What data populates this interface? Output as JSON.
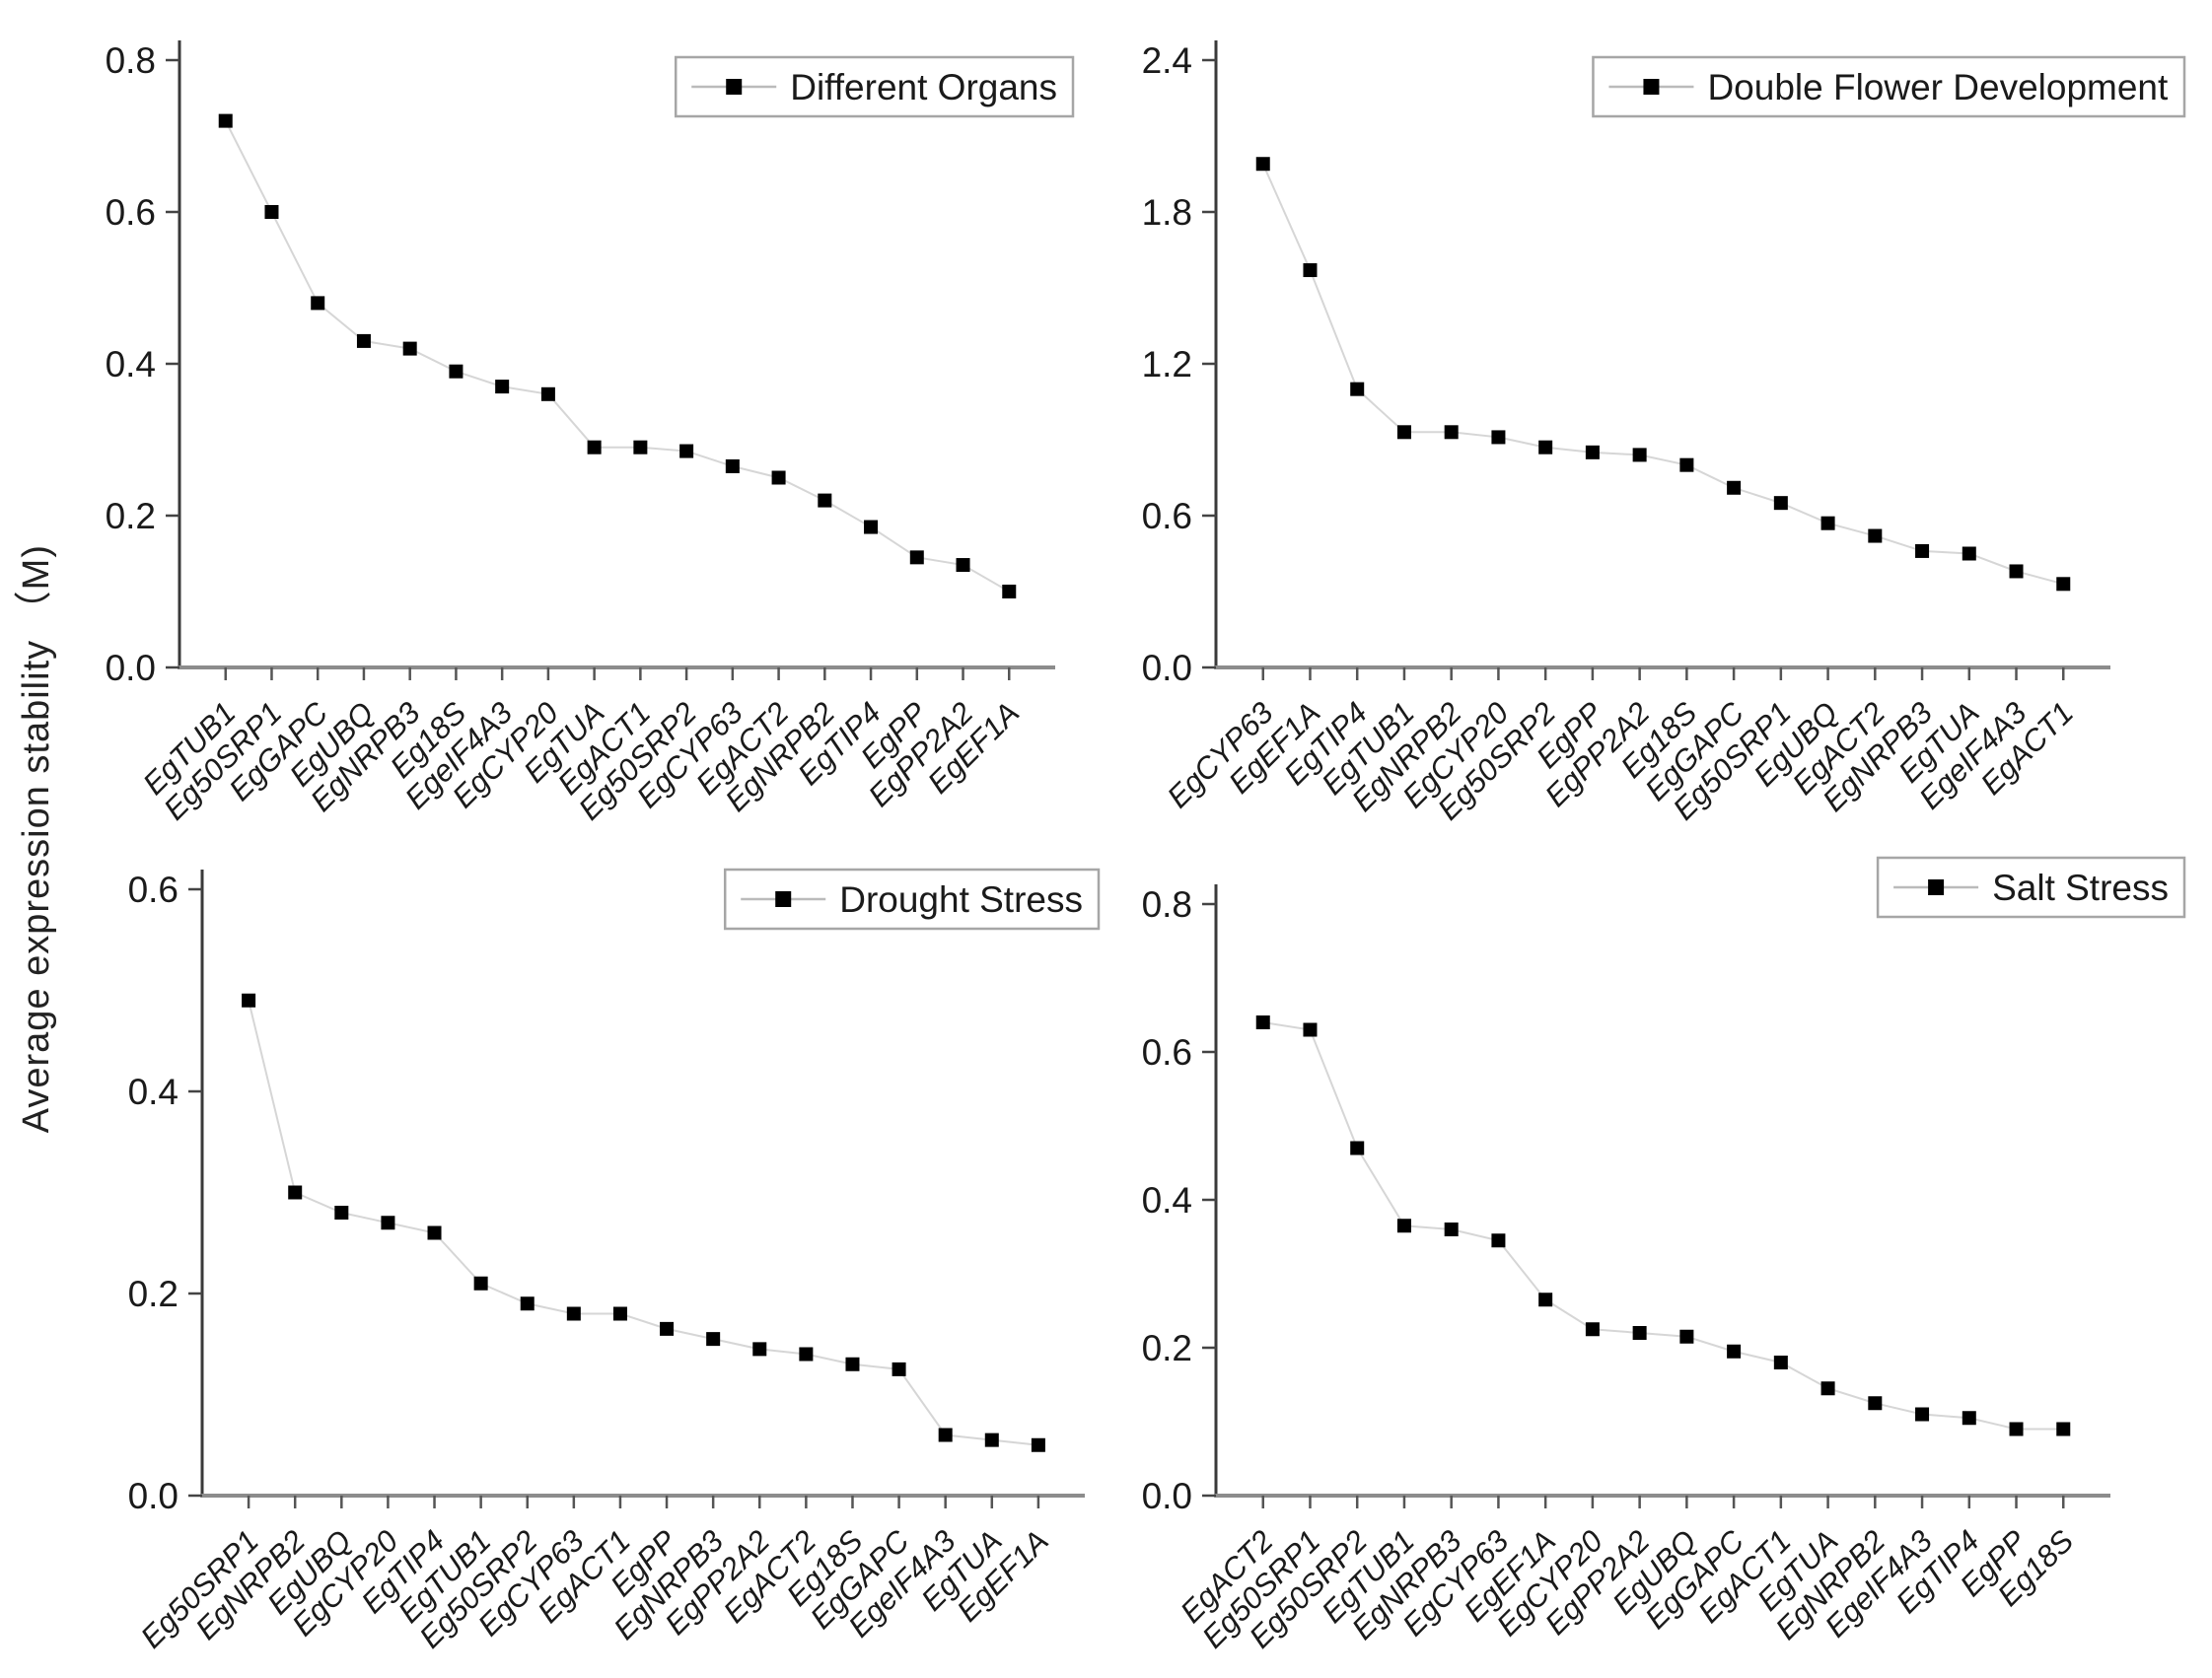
{
  "figure": {
    "y_axis_label": "Average expression stability （M)",
    "background_color": "#ffffff",
    "text_color": "#1a1a1a",
    "marker_color": "#000000",
    "line_color": "#d6d6d6",
    "legend_border_color": "#a6a6a6",
    "x_axis_color": "#8c8c8c",
    "y_axis_color": "#3a3a3a"
  },
  "chart_data": [
    {
      "type": "line",
      "legend": "Different Organs",
      "legend_position": "top-right",
      "marker": "filled-square",
      "grid": false,
      "ylim": [
        0,
        0.8
      ],
      "yticks": [
        0,
        0.2,
        0.4,
        0.6,
        0.8
      ],
      "ytick_labels": [
        "0.0",
        "0.2",
        "0.4",
        "0.6",
        "0.8"
      ],
      "categories": [
        "EgTUB1",
        "Eg50SRP1",
        "EgGAPC",
        "EgUBQ",
        "EgNRPB3",
        "Eg18S",
        "EgeIF4A3",
        "EgCYP20",
        "EgTUA",
        "EgACT1",
        "Eg50SRP2",
        "EgCYP63",
        "EgACT2",
        "EgNRPB2",
        "EgTIP4",
        "EgPP",
        "EgPP2A2",
        "EgEF1A"
      ],
      "values": [
        0.72,
        0.6,
        0.48,
        0.43,
        0.42,
        0.39,
        0.37,
        0.36,
        0.29,
        0.29,
        0.285,
        0.265,
        0.25,
        0.22,
        0.185,
        0.145,
        0.135,
        0.1
      ]
    },
    {
      "type": "line",
      "legend": "Double Flower Development",
      "legend_position": "top-right",
      "marker": "filled-square",
      "grid": false,
      "ylim": [
        0,
        2.4
      ],
      "yticks": [
        0,
        0.6,
        1.2,
        1.8,
        2.4
      ],
      "ytick_labels": [
        "0.0",
        "0.6",
        "1.2",
        "1.8",
        "2.4"
      ],
      "categories": [
        "EgCYP63",
        "EgEF1A",
        "EgTIP4",
        "EgTUB1",
        "EgNRPB2",
        "EgCYP20",
        "Eg50SRP2",
        "EgPP",
        "EgPP2A2",
        "Eg18S",
        "EgGAPC",
        "Eg50SRP1",
        "EgUBQ",
        "EgACT2",
        "EgNRPB3",
        "EgTUA",
        "EgeIF4A3",
        "EgACT1"
      ],
      "values": [
        1.99,
        1.57,
        1.1,
        0.93,
        0.93,
        0.91,
        0.87,
        0.85,
        0.84,
        0.8,
        0.71,
        0.65,
        0.57,
        0.52,
        0.46,
        0.45,
        0.38,
        0.33
      ]
    },
    {
      "type": "line",
      "legend": "Drought Stress",
      "legend_position": "top-right",
      "marker": "filled-square",
      "grid": false,
      "ylim": [
        0,
        0.6
      ],
      "yticks": [
        0,
        0.2,
        0.4,
        0.6
      ],
      "ytick_labels": [
        "0.0",
        "0.2",
        "0.4",
        "0.6"
      ],
      "categories": [
        "Eg50SRP1",
        "EgNRPB2",
        "EgUBQ",
        "EgCYP20",
        "EgTIP4",
        "EgTUB1",
        "Eg50SRP2",
        "EgCYP63",
        "EgACT1",
        "EgPP",
        "EgNRPB3",
        "EgPP2A2",
        "EgACT2",
        "Eg18S",
        "EgGAPC",
        "EgeIF4A3",
        "EgTUA",
        "EgEF1A"
      ],
      "values": [
        0.49,
        0.3,
        0.28,
        0.27,
        0.26,
        0.21,
        0.19,
        0.18,
        0.18,
        0.165,
        0.155,
        0.145,
        0.14,
        0.13,
        0.125,
        0.06,
        0.055,
        0.05
      ]
    },
    {
      "type": "line",
      "legend": "Salt Stress",
      "legend_position": "top-right",
      "marker": "filled-square",
      "grid": false,
      "ylim": [
        0,
        0.8
      ],
      "yticks": [
        0,
        0.2,
        0.4,
        0.6,
        0.8
      ],
      "ytick_labels": [
        "0.0",
        "0.2",
        "0.4",
        "0.6",
        "0.8"
      ],
      "categories": [
        "EgACT2",
        "Eg50SRP1",
        "Eg50SRP2",
        "EgTUB1",
        "EgNRPB3",
        "EgCYP63",
        "EgEF1A",
        "EgCYP20",
        "EgPP2A2",
        "EgUBQ",
        "EgGAPC",
        "EgACT1",
        "EgTUA",
        "EgNRPB2",
        "EgeIF4A3",
        "EgTIP4",
        "EgPP",
        "Eg18S"
      ],
      "values": [
        0.64,
        0.63,
        0.47,
        0.365,
        0.36,
        0.345,
        0.265,
        0.225,
        0.22,
        0.215,
        0.195,
        0.18,
        0.145,
        0.125,
        0.11,
        0.105,
        0.09,
        0.09
      ]
    }
  ]
}
